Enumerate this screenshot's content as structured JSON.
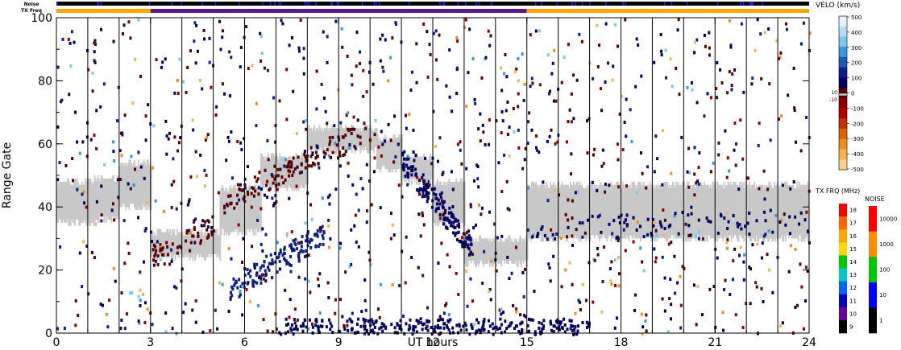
{
  "chart_data": {
    "type": "heatmap",
    "xlabel": "UT hours",
    "ylabel": "Range Gate",
    "xlim": [
      0,
      24
    ],
    "ylim": [
      0,
      100
    ],
    "x_ticks": [
      {
        "value": 0,
        "label": "0"
      },
      {
        "value": 3,
        "label": "3"
      },
      {
        "value": 6,
        "label": "6"
      },
      {
        "value": 9,
        "label": "9"
      },
      {
        "value": 12,
        "label": "12"
      },
      {
        "value": 15,
        "label": "15"
      },
      {
        "value": 18,
        "label": "18"
      },
      {
        "value": 21,
        "label": "21"
      },
      {
        "value": 24,
        "label": "24"
      }
    ],
    "y_ticks": [
      {
        "value": 0,
        "label": "0"
      },
      {
        "value": 20,
        "label": "20"
      },
      {
        "value": 40,
        "label": "40"
      },
      {
        "value": 60,
        "label": "60"
      },
      {
        "value": 80,
        "label": "80"
      },
      {
        "value": 100,
        "label": "100"
      }
    ],
    "scan_boundaries_ut": [
      1,
      2,
      3,
      4,
      5,
      6,
      7,
      8,
      9,
      10,
      11,
      12,
      13,
      14,
      15,
      16,
      17,
      18,
      19,
      20,
      21,
      22,
      23
    ],
    "ground_scatter_color": "#c8c8c8",
    "ground_scatter_segments": [
      {
        "t": [
          0.0,
          1.2
        ],
        "g": [
          35,
          48
        ]
      },
      {
        "t": [
          1.2,
          2.0
        ],
        "g": [
          36,
          49
        ]
      },
      {
        "t": [
          2.0,
          3.0
        ],
        "g": [
          40,
          54
        ]
      },
      {
        "t": [
          3.0,
          5.2
        ],
        "g": [
          24,
          32
        ]
      },
      {
        "t": [
          5.2,
          6.5
        ],
        "g": [
          32,
          46
        ]
      },
      {
        "t": [
          6.5,
          8.0
        ],
        "g": [
          46,
          56
        ]
      },
      {
        "t": [
          8.0,
          10.2
        ],
        "g": [
          58,
          65
        ]
      },
      {
        "t": [
          10.2,
          11.0
        ],
        "g": [
          52,
          62
        ]
      },
      {
        "t": [
          11.0,
          12.0
        ],
        "g": [
          48,
          56
        ]
      },
      {
        "t": [
          12.0,
          13.0
        ],
        "g": [
          35,
          48
        ]
      },
      {
        "t": [
          13.0,
          15.0
        ],
        "g": [
          22,
          30
        ]
      },
      {
        "t": [
          15.0,
          24.0
        ],
        "g": [
          30,
          47
        ]
      }
    ],
    "noise_bar": {
      "label": "Noise",
      "color": "#000000",
      "accent": "#1a1aff"
    },
    "tx_freq_bar": {
      "label": "TX Freq",
      "segments": [
        {
          "start": 0,
          "end": 3,
          "color": "#ffa500"
        },
        {
          "start": 3,
          "end": 15,
          "color": "#5a1a8c"
        },
        {
          "start": 15,
          "end": 24,
          "color": "#ffa500"
        }
      ]
    },
    "velocity_scale": {
      "title": "VELO (km/s)",
      "ticks": [
        "500",
        "400",
        "300",
        "200",
        "100",
        "0",
        "-100",
        "-200",
        "-300",
        "-400",
        "-500"
      ],
      "ground_scatter_ticks": [
        "10",
        "-10"
      ],
      "colors": [
        "#e6f0ff",
        "#b4dcf5",
        "#78c8f0",
        "#3c96dc",
        "#1e5ab4",
        "#0a1e8c",
        "#000064",
        "#5a0000",
        "#8c0000",
        "#b40000",
        "#c83200",
        "#dc6400",
        "#f08c1e",
        "#f5b450",
        "#fad28c"
      ]
    },
    "tx_freq_scale": {
      "title": "TX FRQ (MHz)",
      "ticks": [
        "18",
        "17",
        "16",
        "15",
        "14",
        "13",
        "12",
        "11",
        "10",
        "9"
      ],
      "colors": [
        "#ff0000",
        "#ff6400",
        "#ffa500",
        "#ffd700",
        "#00c800",
        "#00c8c8",
        "#0064ff",
        "#0000c8",
        "#6400a0",
        "#000000"
      ]
    },
    "noise_scale": {
      "title": "NOISE",
      "ticks": [
        "10000",
        "1000",
        "100",
        "10",
        "1"
      ],
      "colors": [
        "#ff0000",
        "#ff8c00",
        "#00c800",
        "#0000ff",
        "#000000"
      ]
    }
  }
}
